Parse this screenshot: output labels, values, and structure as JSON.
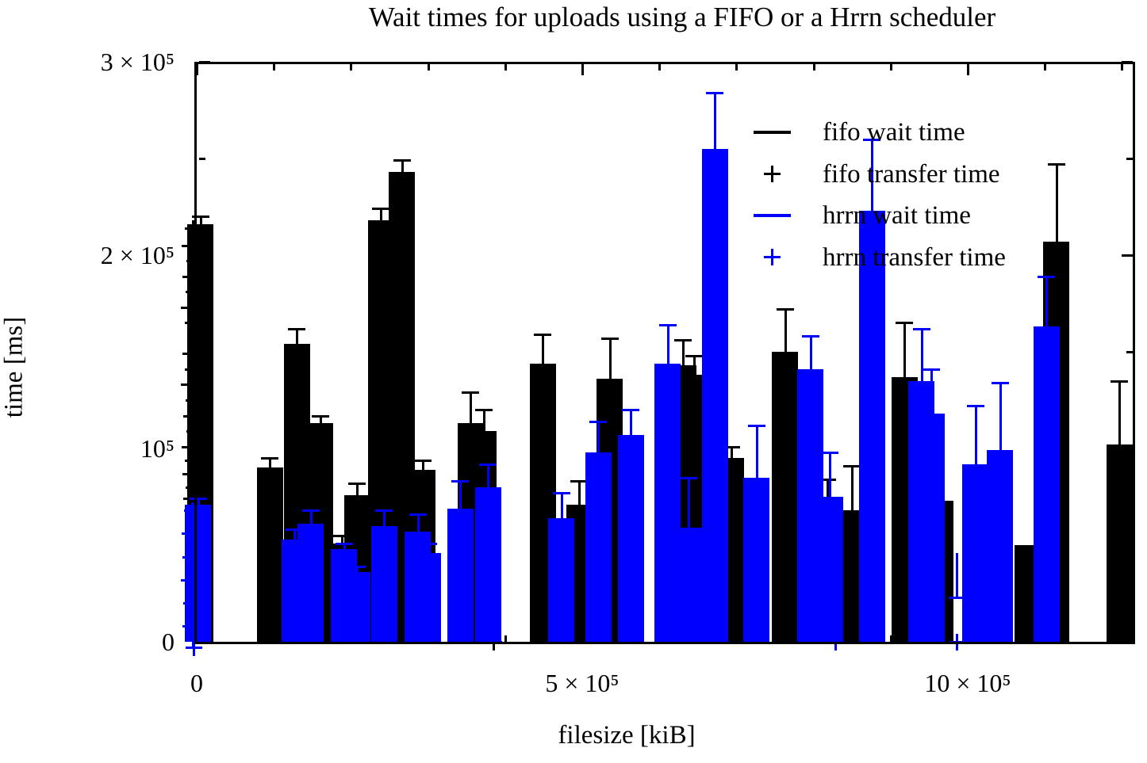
{
  "title": "Wait times for uploads using a FIFO or a Hrrn scheduler",
  "axes": {
    "x_label": "filesize [kiB]",
    "y_label": "time [ms]",
    "x_major_ticks": [
      {
        "v": 0,
        "label": "0"
      },
      {
        "v": 5,
        "label": "5 × 10⁵"
      },
      {
        "v": 10,
        "label": "10 × 10⁵"
      }
    ],
    "x_minor_ticks": [
      1,
      2,
      3,
      4,
      6,
      7,
      8,
      9,
      11,
      12
    ],
    "y_major_ticks": [
      {
        "v": 0,
        "label": "0"
      },
      {
        "v": 1,
        "label": "10⁵"
      },
      {
        "v": 2,
        "label": "2 × 10⁵"
      },
      {
        "v": 3,
        "label": "3 × 10⁵"
      }
    ],
    "y_minor_ticks": [
      0.5,
      1.5,
      2.5
    ],
    "x_range": [
      0,
      12.14
    ],
    "y_range": [
      0,
      3
    ],
    "unit_scale": 100000
  },
  "colors": {
    "fifo": "#000000",
    "hrrn": "#0000ff",
    "background": "#ffffff",
    "axis": "#000000"
  },
  "legend": [
    {
      "label": "fifo wait time",
      "marker": "line",
      "color": "#000000"
    },
    {
      "label": "fifo transfer time",
      "marker": "plus",
      "color": "#000000"
    },
    {
      "label": "hrrn wait time",
      "marker": "line",
      "color": "#0000ff"
    },
    {
      "label": "hrrn transfer time",
      "marker": "plus",
      "color": "#0000ff"
    }
  ],
  "chart_data": {
    "type": "bar",
    "title": "Wait times for uploads using a FIFO or a Hrrn scheduler",
    "xlabel": "filesize [kiB]",
    "ylabel": "time [ms]",
    "xlim": [
      0,
      12.14
    ],
    "ylim": [
      0,
      3
    ],
    "value_scale": 100000,
    "grid": false,
    "legend_position": "inside-top-right",
    "series": [
      {
        "name": "fifo wait time",
        "style": "box",
        "color": "#000000",
        "points": [
          {
            "x": 0.05,
            "y": 2.16,
            "err": 0.04
          },
          {
            "x": 0.95,
            "y": 0.9,
            "err": 0.05
          },
          {
            "x": 1.3,
            "y": 1.54,
            "err": 0.08
          },
          {
            "x": 1.6,
            "y": 1.13,
            "err": 0.04
          },
          {
            "x": 1.88,
            "y": 0.51,
            "err": 0.04
          },
          {
            "x": 2.08,
            "y": 0.76,
            "err": 0.06
          },
          {
            "x": 2.39,
            "y": 2.18,
            "err": 0.06
          },
          {
            "x": 2.66,
            "y": 2.43,
            "err": 0.06
          },
          {
            "x": 2.93,
            "y": 0.89,
            "err": 0.05
          },
          {
            "x": 3.55,
            "y": 1.13,
            "err": 0.16
          },
          {
            "x": 3.72,
            "y": 1.09,
            "err": 0.11
          },
          {
            "x": 4.49,
            "y": 1.44,
            "err": 0.15
          },
          {
            "x": 4.96,
            "y": 0.71,
            "err": 0.12
          },
          {
            "x": 5.36,
            "y": 1.36,
            "err": 0.21
          },
          {
            "x": 6.31,
            "y": 1.43,
            "err": 0.13
          },
          {
            "x": 6.45,
            "y": 1.38,
            "err": 0.1
          },
          {
            "x": 6.93,
            "y": 0.95,
            "err": 0.06
          },
          {
            "x": 7.63,
            "y": 1.5,
            "err": 0.22
          },
          {
            "x": 8.18,
            "y": 0.52,
            "err": 0.32
          },
          {
            "x": 8.5,
            "y": 0.68,
            "err": 0.23
          },
          {
            "x": 9.18,
            "y": 1.37,
            "err": 0.28
          },
          {
            "x": 9.65,
            "y": 0.73,
            "err": 0
          },
          {
            "x": 10.78,
            "y": 0.5,
            "err": 0
          },
          {
            "x": 11.15,
            "y": 2.07,
            "err": 0.4
          },
          {
            "x": 11.97,
            "y": 1.02,
            "err": 0.33
          }
        ]
      },
      {
        "name": "fifo transfer time",
        "style": "plus",
        "color": "#000000",
        "points": [
          {
            "x": -0.05,
            "y": 2.14
          },
          {
            "x": -0.09,
            "y": 2.05
          },
          {
            "x": -0.03,
            "y": 1.97
          },
          {
            "x": -0.08,
            "y": 1.89
          },
          {
            "x": -0.04,
            "y": 1.81
          },
          {
            "x": -0.1,
            "y": 1.73
          },
          {
            "x": -0.05,
            "y": 1.65
          },
          {
            "x": -0.02,
            "y": 1.57
          },
          {
            "x": -0.08,
            "y": 1.49
          },
          {
            "x": -0.05,
            "y": 1.41
          },
          {
            "x": -0.1,
            "y": 1.33
          },
          {
            "x": -0.04,
            "y": 1.25
          },
          {
            "x": -0.07,
            "y": 1.17
          },
          {
            "x": -0.03,
            "y": 1.09
          },
          {
            "x": -0.09,
            "y": 1.01
          },
          {
            "x": -0.05,
            "y": 0.94
          },
          {
            "x": -0.08,
            "y": 0.87
          },
          {
            "x": -0.04,
            "y": 0.8
          },
          {
            "x": -0.07,
            "y": 0.74
          },
          {
            "x": 3.85,
            "y": 0.0
          }
        ]
      },
      {
        "name": "hrrn wait time",
        "style": "box",
        "color": "#0000ff",
        "points": [
          {
            "x": 0.02,
            "y": 0.71,
            "err": 0.03
          },
          {
            "x": 1.27,
            "y": 0.53,
            "err": 0.05
          },
          {
            "x": 1.48,
            "y": 0.61,
            "err": 0.07
          },
          {
            "x": 1.91,
            "y": 0.48,
            "err": 0.03
          },
          {
            "x": 2.08,
            "y": 0.36,
            "err": 0.03
          },
          {
            "x": 2.43,
            "y": 0.6,
            "err": 0.08
          },
          {
            "x": 2.87,
            "y": 0.57,
            "err": 0.09
          },
          {
            "x": 3.0,
            "y": 0.46,
            "err": 0.05
          },
          {
            "x": 3.42,
            "y": 0.69,
            "err": 0.14
          },
          {
            "x": 3.78,
            "y": 0.8,
            "err": 0.12
          },
          {
            "x": 4.73,
            "y": 0.64,
            "err": 0.13
          },
          {
            "x": 5.21,
            "y": 0.98,
            "err": 0.16
          },
          {
            "x": 5.63,
            "y": 1.07,
            "err": 0.13
          },
          {
            "x": 6.11,
            "y": 1.44,
            "err": 0.2
          },
          {
            "x": 6.38,
            "y": 0.59,
            "err": 0.26
          },
          {
            "x": 6.72,
            "y": 2.55,
            "err": 0.29
          },
          {
            "x": 7.26,
            "y": 0.85,
            "err": 0.27
          },
          {
            "x": 7.96,
            "y": 1.41,
            "err": 0.17
          },
          {
            "x": 8.21,
            "y": 0.75,
            "err": 0.23
          },
          {
            "x": 8.76,
            "y": 2.23,
            "err": 0.37
          },
          {
            "x": 9.4,
            "y": 1.35,
            "err": 0.27
          },
          {
            "x": 9.53,
            "y": 1.18,
            "err": 0.23
          },
          {
            "x": 10.1,
            "y": 0.92,
            "err": 0.3
          },
          {
            "x": 10.42,
            "y": 0.99,
            "err": 0.35
          },
          {
            "x": 11.02,
            "y": 1.63,
            "err": 0.26
          }
        ]
      },
      {
        "name": "hrrn transfer time",
        "style": "plus",
        "color": "#0000ff",
        "points": [
          {
            "x": -0.06,
            "y": 0.68
          },
          {
            "x": -0.03,
            "y": 0.62
          },
          {
            "x": -0.09,
            "y": 0.56
          },
          {
            "x": -0.05,
            "y": 0.5
          },
          {
            "x": -0.08,
            "y": 0.44
          },
          {
            "x": -0.04,
            "y": 0.38
          },
          {
            "x": -0.1,
            "y": 0.32
          },
          {
            "x": -0.05,
            "y": 0.26
          },
          {
            "x": -0.07,
            "y": 0.2
          },
          {
            "x": -0.03,
            "y": 0.14
          },
          {
            "x": -0.08,
            "y": 0.08
          },
          {
            "x": -0.05,
            "y": 0.02
          },
          {
            "x": -0.04,
            "y": -0.03
          },
          {
            "x": 8.28,
            "y": 0.0
          },
          {
            "x": 9.86,
            "y": 0.0
          }
        ]
      }
    ],
    "extra_whiskers": [
      {
        "series": "hrrn wait time",
        "color": "#0000ff",
        "x": 9.86,
        "from": 0.23,
        "to": 0.46,
        "cap": "bottom"
      }
    ]
  }
}
